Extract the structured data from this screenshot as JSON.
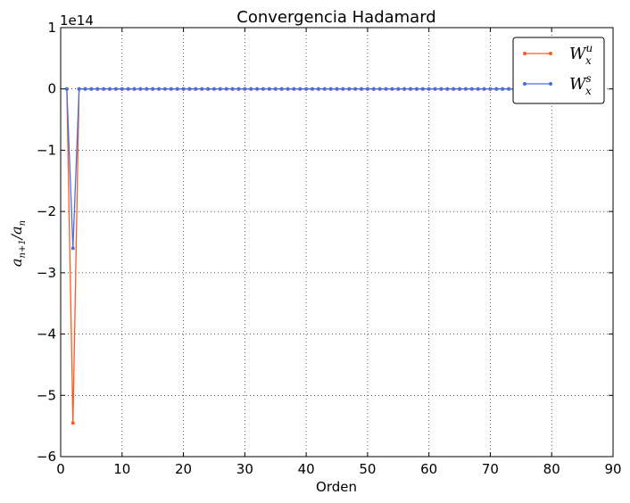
{
  "chart_data": {
    "type": "line",
    "title": "Convergencia Hadamard",
    "xlabel": "Orden",
    "ylabel": "a_{n+1}/a_n",
    "ylabel_parts": {
      "main_1": "a",
      "sub_1": "n+1",
      "slash": "/",
      "main_2": "a",
      "sub_2": "n"
    },
    "offset_text": "1e14",
    "xlim": [
      0,
      90
    ],
    "ylim": [
      -6,
      1
    ],
    "y_scale_factor": 100000000000000.0,
    "x_ticks": [
      0,
      10,
      20,
      30,
      40,
      50,
      60,
      70,
      80,
      90
    ],
    "x_tick_labels": [
      "0",
      "10",
      "20",
      "30",
      "40",
      "50",
      "60",
      "70",
      "80",
      "90"
    ],
    "y_ticks": [
      1,
      0,
      -1,
      -2,
      -3,
      -4,
      -5,
      -6
    ],
    "y_tick_labels": [
      "1",
      "0",
      "−1",
      "−2",
      "−3",
      "−4",
      "−5",
      "−6"
    ],
    "grid": true,
    "legend_position": "top-right",
    "series": [
      {
        "legend_main": "W",
        "legend_sub": "x",
        "legend_sup": "u",
        "color": "#ff5a1e",
        "x": [
          1,
          2,
          3
        ],
        "y": [
          0,
          -5.45,
          0
        ],
        "x_range": [
          3,
          87
        ]
      },
      {
        "legend_main": "W",
        "legend_sub": "x",
        "legend_sup": "s",
        "color": "#4a6fdc",
        "x": [
          1,
          2,
          3
        ],
        "y": [
          0,
          -2.6,
          0
        ],
        "x_range": [
          3,
          87
        ]
      }
    ]
  }
}
